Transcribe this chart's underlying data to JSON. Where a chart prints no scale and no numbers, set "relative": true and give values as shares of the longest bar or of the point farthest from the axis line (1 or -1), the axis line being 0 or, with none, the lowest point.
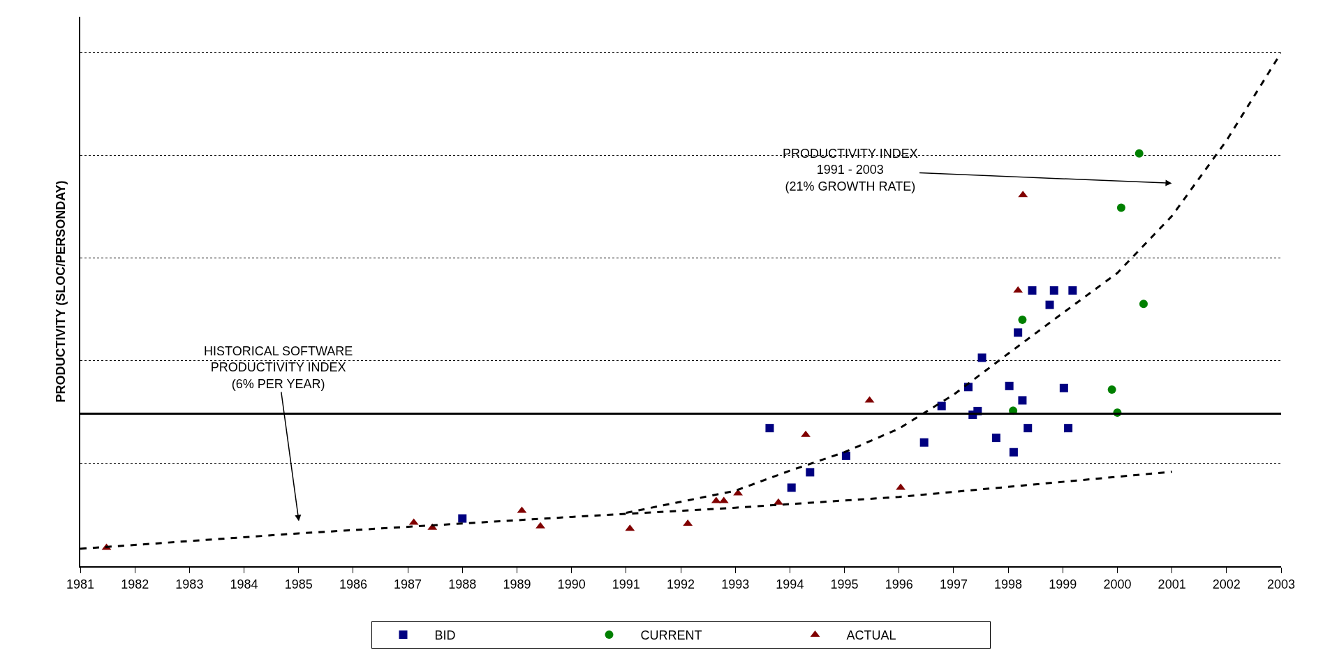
{
  "chart_data": {
    "type": "scatter",
    "relative": true,
    "ylabel": "PRODUCTIVITY (SLOC/PERSONDAY)",
    "xlim": [
      1981,
      2003
    ],
    "xticks": [
      1981,
      1982,
      1983,
      1984,
      1985,
      1986,
      1987,
      1988,
      1989,
      1990,
      1991,
      1992,
      1993,
      1994,
      1995,
      1996,
      1997,
      1998,
      1999,
      2000,
      2001,
      2002,
      2003
    ],
    "grid": "y",
    "legend": "bottom",
    "series": [
      {
        "name": "BID",
        "marker": "square",
        "color": "#000080",
        "x": [
          1988.0,
          1993.63,
          1994.03,
          1994.37,
          1995.03,
          1996.46,
          1996.78,
          1997.27,
          1997.35,
          1997.44,
          1997.52,
          1997.78,
          1998.02,
          1998.1,
          1998.18,
          1998.26,
          1998.36,
          1998.44,
          1998.76,
          1998.84,
          1999.02,
          1999.1,
          1999.18
        ],
        "values": [
          0.093,
          0.269,
          0.153,
          0.183,
          0.215,
          0.241,
          0.312,
          0.349,
          0.295,
          0.302,
          0.406,
          0.25,
          0.351,
          0.222,
          0.455,
          0.323,
          0.269,
          0.537,
          0.509,
          0.537,
          0.347,
          0.269,
          0.537
        ]
      },
      {
        "name": "CURRENT",
        "marker": "circle",
        "color": "#008000",
        "x": [
          1998.09,
          1998.26,
          1999.9,
          2000.0,
          2000.07,
          2000.4,
          2000.48
        ],
        "values": [
          0.303,
          0.48,
          0.344,
          0.299,
          0.698,
          0.804,
          0.511
        ]
      },
      {
        "name": "ACTUAL",
        "marker": "triangle",
        "color": "#800000",
        "x": [
          1981.48,
          1987.11,
          1987.45,
          1989.09,
          1989.43,
          1991.07,
          1992.13,
          1992.65,
          1992.79,
          1993.05,
          1993.79,
          1994.29,
          1995.46,
          1996.03,
          1998.18,
          1998.27
        ],
        "values": [
          0.036,
          0.085,
          0.075,
          0.108,
          0.078,
          0.073,
          0.083,
          0.127,
          0.127,
          0.142,
          0.124,
          0.256,
          0.323,
          0.153,
          0.537,
          0.723
        ]
      },
      {
        "type": "line",
        "marker": "none",
        "line_style": "dashed",
        "color": "#000000",
        "x": [
          1981,
          1985,
          1990,
          1993,
          1996,
          2001
        ],
        "values": [
          0.034,
          0.064,
          0.096,
          0.114,
          0.135,
          0.184
        ]
      },
      {
        "type": "line",
        "marker": "none",
        "line_style": "dashed",
        "color": "#000000",
        "x": [
          1991,
          1993,
          1994,
          1995,
          1996,
          1997,
          1998,
          1999,
          2000,
          2001,
          2002,
          2003
        ],
        "values": [
          0.104,
          0.147,
          0.186,
          0.222,
          0.268,
          0.334,
          0.414,
          0.493,
          0.571,
          0.682,
          0.829,
          1.0
        ]
      }
    ],
    "ref_lines": [
      {
        "axis": "y",
        "value": 0.297,
        "color": "#000000",
        "line_style": "solid"
      }
    ],
    "annotations": [
      "HISTORICAL SOFTWARE\nPRODUCTIVITY INDEX\n(6% PER YEAR)",
      "PRODUCTIVITY INDEX\n1991 - 2003\n(21% GROWTH RATE)"
    ]
  }
}
